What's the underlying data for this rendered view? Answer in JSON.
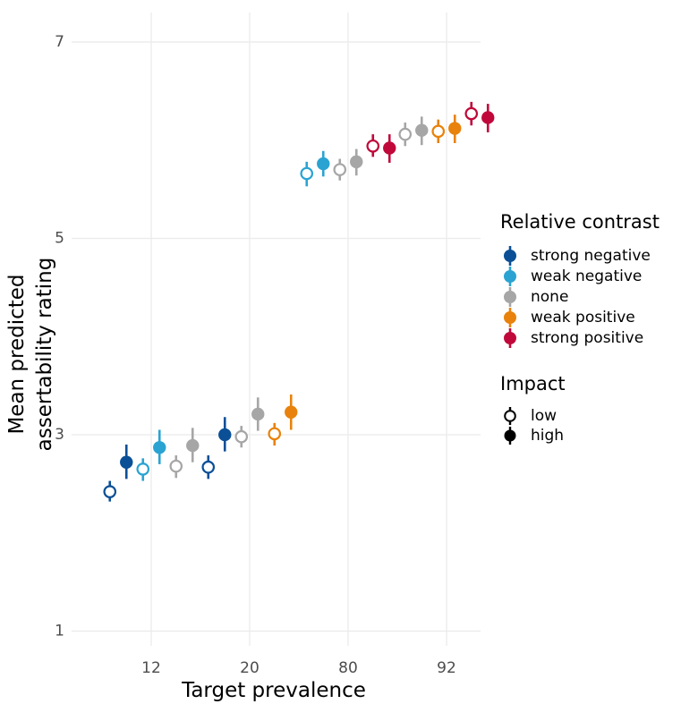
{
  "chart_data": {
    "type": "scatter",
    "title": "",
    "xlabel": "Target prevalence",
    "ylabel_lines": [
      "Mean predicted",
      "assertability rating"
    ],
    "categories": [
      "12",
      "20",
      "80",
      "92"
    ],
    "y_ticks": [
      1,
      3,
      5,
      7
    ],
    "ylim": [
      0.85,
      7.3
    ],
    "grid": true,
    "legend_placement": "right",
    "contrast_legend": {
      "title": "Relative contrast",
      "levels": [
        {
          "name": "strong negative",
          "color": "#0b4f96"
        },
        {
          "name": "weak negative",
          "color": "#2aa3d2"
        },
        {
          "name": "none",
          "color": "#a6a6a6"
        },
        {
          "name": "weak positive",
          "color": "#e8820c"
        },
        {
          "name": "strong positive",
          "color": "#c0093a"
        }
      ]
    },
    "impact_legend": {
      "title": "Impact",
      "levels": [
        {
          "name": "low",
          "filled": false
        },
        {
          "name": "high",
          "filled": true
        }
      ]
    },
    "points": [
      {
        "category": "12",
        "contrast": "strong negative",
        "impact": "low",
        "mean": 2.42,
        "lower": 2.32,
        "upper": 2.53
      },
      {
        "category": "12",
        "contrast": "strong negative",
        "impact": "high",
        "mean": 2.72,
        "lower": 2.55,
        "upper": 2.9
      },
      {
        "category": "12",
        "contrast": "weak negative",
        "impact": "low",
        "mean": 2.65,
        "lower": 2.53,
        "upper": 2.76
      },
      {
        "category": "12",
        "contrast": "weak negative",
        "impact": "high",
        "mean": 2.87,
        "lower": 2.7,
        "upper": 3.05
      },
      {
        "category": "12",
        "contrast": "none",
        "impact": "low",
        "mean": 2.68,
        "lower": 2.56,
        "upper": 2.79
      },
      {
        "category": "12",
        "contrast": "none",
        "impact": "high",
        "mean": 2.89,
        "lower": 2.72,
        "upper": 3.07
      },
      {
        "category": "20",
        "contrast": "strong negative",
        "impact": "low",
        "mean": 2.67,
        "lower": 2.55,
        "upper": 2.79
      },
      {
        "category": "20",
        "contrast": "strong negative",
        "impact": "high",
        "mean": 3.0,
        "lower": 2.83,
        "upper": 3.18
      },
      {
        "category": "20",
        "contrast": "none",
        "impact": "low",
        "mean": 2.98,
        "lower": 2.87,
        "upper": 3.09
      },
      {
        "category": "20",
        "contrast": "none",
        "impact": "high",
        "mean": 3.21,
        "lower": 3.04,
        "upper": 3.38
      },
      {
        "category": "20",
        "contrast": "weak positive",
        "impact": "low",
        "mean": 3.01,
        "lower": 2.89,
        "upper": 3.12
      },
      {
        "category": "20",
        "contrast": "weak positive",
        "impact": "high",
        "mean": 3.23,
        "lower": 3.05,
        "upper": 3.41
      },
      {
        "category": "80",
        "contrast": "weak negative",
        "impact": "low",
        "mean": 5.66,
        "lower": 5.53,
        "upper": 5.78
      },
      {
        "category": "80",
        "contrast": "weak negative",
        "impact": "high",
        "mean": 5.76,
        "lower": 5.63,
        "upper": 5.89
      },
      {
        "category": "80",
        "contrast": "none",
        "impact": "low",
        "mean": 5.7,
        "lower": 5.59,
        "upper": 5.81
      },
      {
        "category": "80",
        "contrast": "none",
        "impact": "high",
        "mean": 5.78,
        "lower": 5.64,
        "upper": 5.91
      },
      {
        "category": "80",
        "contrast": "strong positive",
        "impact": "low",
        "mean": 5.94,
        "lower": 5.83,
        "upper": 6.06
      },
      {
        "category": "80",
        "contrast": "strong positive",
        "impact": "high",
        "mean": 5.92,
        "lower": 5.77,
        "upper": 6.06
      },
      {
        "category": "92",
        "contrast": "none",
        "impact": "low",
        "mean": 6.06,
        "lower": 5.94,
        "upper": 6.18
      },
      {
        "category": "92",
        "contrast": "none",
        "impact": "high",
        "mean": 6.1,
        "lower": 5.95,
        "upper": 6.24
      },
      {
        "category": "92",
        "contrast": "weak positive",
        "impact": "low",
        "mean": 6.09,
        "lower": 5.97,
        "upper": 6.21
      },
      {
        "category": "92",
        "contrast": "weak positive",
        "impact": "high",
        "mean": 6.12,
        "lower": 5.97,
        "upper": 6.26
      },
      {
        "category": "92",
        "contrast": "strong positive",
        "impact": "low",
        "mean": 6.27,
        "lower": 6.15,
        "upper": 6.39
      },
      {
        "category": "92",
        "contrast": "strong positive",
        "impact": "high",
        "mean": 6.23,
        "lower": 6.08,
        "upper": 6.37
      }
    ]
  }
}
